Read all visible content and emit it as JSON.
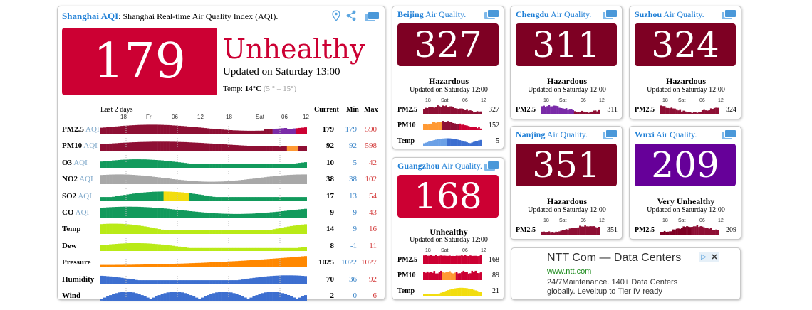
{
  "main": {
    "city": "Shanghai AQI",
    "subtitle": ": Shanghai Real-time Air Quality Index (AQI).",
    "aqi": "179",
    "aqi_color": "#cc0033",
    "status": "Unhealthy",
    "updated": "Updated on Saturday 13:00",
    "temp_label": "Temp: ",
    "temp_value": "14°C",
    "temp_range": "(5 ° – 15°)",
    "icons": [
      "location-pin-icon",
      "share-icon",
      "cards-icon"
    ],
    "last_label": "Last 2 days",
    "ticks": [
      "18",
      "Fri",
      "06",
      "12",
      "18",
      "Sat",
      "06",
      "12"
    ],
    "col_current": "Current",
    "col_min": "Min",
    "col_max": "Max",
    "rows": [
      {
        "label": "PM2.5",
        "aqi": " AQI",
        "current": "179",
        "min": "179",
        "max": "590"
      },
      {
        "label": "PM10",
        "aqi": " AQI",
        "current": "92",
        "min": "92",
        "max": "598"
      },
      {
        "label": "O3",
        "aqi": " AQI",
        "current": "10",
        "min": "5",
        "max": "42"
      },
      {
        "label": "NO2",
        "aqi": " AQI",
        "current": "38",
        "min": "38",
        "max": "102"
      },
      {
        "label": "SO2",
        "aqi": " AQI",
        "current": "17",
        "min": "13",
        "max": "54"
      },
      {
        "label": "CO",
        "aqi": " AQI",
        "current": "9",
        "min": "9",
        "max": "43"
      },
      {
        "label": "Temp",
        "aqi": "",
        "current": "14",
        "min": "9",
        "max": "16"
      },
      {
        "label": "Dew",
        "aqi": "",
        "current": "8",
        "min": "-1",
        "max": "11"
      },
      {
        "label": "Pressure",
        "aqi": "",
        "current": "1025",
        "min": "1022",
        "max": "1027"
      },
      {
        "label": "Humidity",
        "aqi": "",
        "current": "70",
        "min": "36",
        "max": "92"
      },
      {
        "label": "Wind",
        "aqi": "",
        "current": "2",
        "min": "0",
        "max": "6"
      }
    ]
  },
  "cities": [
    {
      "name": "Beijing",
      "suffix": " Air Quality.",
      "aqi": "327",
      "color": "#7e0023",
      "level": "Hazardous",
      "updated": "Updated on Saturday 12:00",
      "ticks": [
        "18",
        "Sat",
        "06",
        "12"
      ],
      "rows": [
        {
          "label": "PM2.5",
          "value": "327"
        },
        {
          "label": "PM10",
          "value": "152"
        },
        {
          "label": "Temp",
          "value": "5"
        }
      ]
    },
    {
      "name": "Chengdu",
      "suffix": " Air Quality.",
      "aqi": "311",
      "color": "#7e0023",
      "level": "Hazardous",
      "updated": "Updated on Saturday 12:00",
      "ticks": [
        "18",
        "Sat",
        "06",
        "12"
      ],
      "rows": [
        {
          "label": "PM2.5",
          "value": "311"
        }
      ]
    },
    {
      "name": "Suzhou",
      "suffix": " Air Quality.",
      "aqi": "324",
      "color": "#7e0023",
      "level": "Hazardous",
      "updated": "Updated on Saturday 12:00",
      "ticks": [
        "18",
        "Sat",
        "06",
        "12"
      ],
      "rows": [
        {
          "label": "PM2.5",
          "value": "324"
        }
      ]
    },
    {
      "name": "Guangzhou",
      "suffix": " Air Quality.",
      "aqi": "168",
      "color": "#cc0033",
      "level": "Unhealthy",
      "updated": "Updated on Saturday 12:00",
      "ticks": [
        "18",
        "Sat",
        "06",
        "12"
      ],
      "rows": [
        {
          "label": "PM2.5",
          "value": "168"
        },
        {
          "label": "PM10",
          "value": "89"
        },
        {
          "label": "Temp",
          "value": "21"
        }
      ]
    },
    {
      "name": "Nanjing",
      "suffix": " Air Quality.",
      "aqi": "351",
      "color": "#7e0023",
      "level": "Hazardous",
      "updated": "Updated on Saturday 12:00",
      "ticks": [
        "18",
        "Sat",
        "06",
        "12"
      ],
      "rows": [
        {
          "label": "PM2.5",
          "value": "351"
        }
      ]
    },
    {
      "name": "Wuxi",
      "suffix": " Air Quality.",
      "aqi": "209",
      "color": "#660099",
      "level": "Very Unhealthy",
      "updated": "Updated on Saturday 12:00",
      "ticks": [
        "18",
        "Sat",
        "06",
        "12"
      ],
      "rows": [
        {
          "label": "PM2.5",
          "value": "209"
        }
      ]
    }
  ],
  "ad": {
    "title": "NTT Com — Data Centers",
    "url": "www.ntt.com",
    "text": "24/7Maintenance. 140+ Data Centers globally. Level:up to Tier IV ready",
    "icons": [
      "ad-choices-icon",
      "close-icon"
    ]
  }
}
